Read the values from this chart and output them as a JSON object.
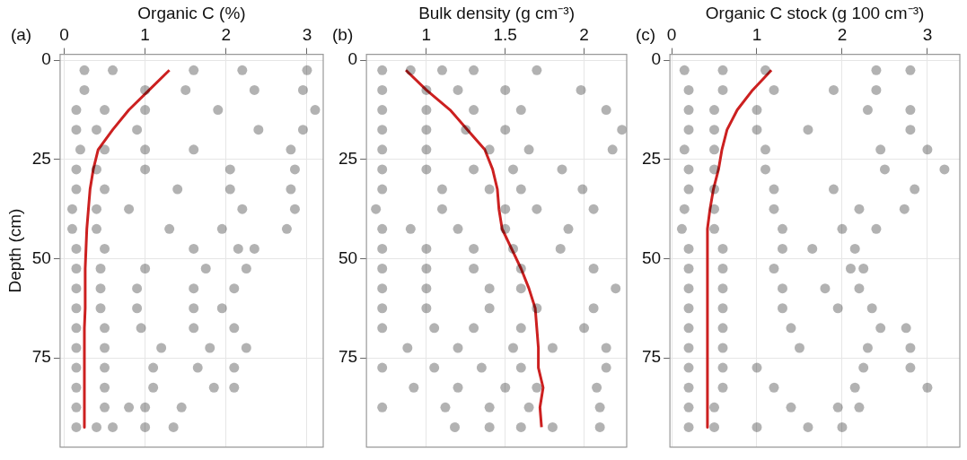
{
  "chart_data": [
    {
      "type": "scatter",
      "title": "(a)",
      "xlabel": "Organic C (%)",
      "ylabel": "Depth (cm)",
      "xlim": [
        -0.05,
        3.2
      ],
      "xticks": [
        0,
        1,
        2,
        3
      ],
      "ylim": [
        97.5,
        -1.5
      ],
      "yticks": [
        0,
        25,
        50,
        75
      ],
      "grid": true,
      "series": [
        {
          "marker": "circle",
          "color": "#000000",
          "x": [
            0.25,
            0.6,
            1.6,
            2.2,
            3.0,
            0.25,
            1.0,
            1.5,
            2.35,
            2.95,
            0.15,
            0.5,
            1.0,
            1.9,
            3.1,
            0.15,
            0.4,
            0.9,
            2.4,
            2.95,
            0.2,
            0.5,
            1.0,
            1.6,
            2.8,
            0.15,
            0.4,
            1.0,
            2.05,
            2.85,
            0.15,
            0.5,
            1.4,
            2.05,
            2.8,
            0.1,
            0.4,
            0.8,
            2.2,
            2.85,
            0.1,
            0.4,
            1.3,
            1.95,
            2.75,
            0.15,
            0.5,
            1.6,
            2.15,
            2.35,
            0.15,
            0.45,
            1.0,
            1.75,
            2.25,
            0.15,
            0.45,
            0.9,
            1.6,
            2.1,
            0.15,
            0.45,
            0.9,
            1.6,
            1.95,
            0.15,
            0.5,
            0.95,
            1.6,
            2.1,
            0.15,
            0.5,
            1.2,
            1.8,
            2.25,
            0.15,
            0.5,
            1.1,
            1.65,
            2.1,
            0.15,
            0.5,
            1.1,
            1.85,
            2.1,
            0.15,
            0.5,
            0.8,
            1.0,
            1.45,
            0.15,
            0.4,
            0.6,
            1.0,
            1.35
          ],
          "values": [
            2.5,
            2.5,
            2.5,
            2.5,
            2.5,
            7.5,
            7.5,
            7.5,
            7.5,
            7.5,
            12.5,
            12.5,
            12.5,
            12.5,
            12.5,
            17.5,
            17.5,
            17.5,
            17.5,
            17.5,
            22.5,
            22.5,
            22.5,
            22.5,
            22.5,
            27.5,
            27.5,
            27.5,
            27.5,
            27.5,
            32.5,
            32.5,
            32.5,
            32.5,
            32.5,
            37.5,
            37.5,
            37.5,
            37.5,
            37.5,
            42.5,
            42.5,
            42.5,
            42.5,
            42.5,
            47.5,
            47.5,
            47.5,
            47.5,
            47.5,
            52.5,
            52.5,
            52.5,
            52.5,
            52.5,
            57.5,
            57.5,
            57.5,
            57.5,
            57.5,
            62.5,
            62.5,
            62.5,
            62.5,
            62.5,
            67.5,
            67.5,
            67.5,
            67.5,
            67.5,
            72.5,
            72.5,
            72.5,
            72.5,
            72.5,
            77.5,
            77.5,
            77.5,
            77.5,
            77.5,
            82.5,
            82.5,
            82.5,
            82.5,
            82.5,
            87.5,
            87.5,
            87.5,
            87.5,
            87.5,
            92.5,
            92.5,
            92.5,
            92.5,
            92.5
          ]
        },
        {
          "type": "line",
          "color": "#cc2020",
          "x": [
            1.3,
            1.05,
            0.8,
            0.6,
            0.42,
            0.36,
            0.32,
            0.3,
            0.28,
            0.27,
            0.26,
            0.26,
            0.26,
            0.25,
            0.25,
            0.25,
            0.25,
            0.25,
            0.25
          ],
          "values": [
            2.5,
            7.5,
            12.5,
            17.5,
            22.5,
            27.5,
            32.5,
            37.5,
            42.5,
            47.5,
            52.5,
            57.5,
            62.5,
            67.5,
            72.5,
            77.5,
            82.5,
            87.5,
            92.5
          ]
        }
      ]
    },
    {
      "type": "scatter",
      "title": "(b)",
      "xlabel": "Bulk density (g cm⁻³)",
      "xlim": [
        0.62,
        2.27
      ],
      "xticks": [
        1,
        1.5,
        2
      ],
      "ylim": [
        97.5,
        -1.5
      ],
      "yticks": [
        0,
        25,
        50,
        75
      ],
      "grid": true,
      "series": [
        {
          "marker": "circle",
          "color": "#000000",
          "x": [
            0.72,
            0.9,
            1.1,
            1.3,
            1.7,
            0.72,
            1.0,
            1.2,
            1.5,
            1.98,
            0.72,
            1.0,
            1.3,
            1.6,
            2.14,
            0.72,
            1.0,
            1.25,
            1.5,
            2.24,
            0.72,
            1.0,
            1.4,
            1.65,
            2.18,
            0.72,
            1.0,
            1.3,
            1.55,
            1.86,
            0.72,
            1.1,
            1.4,
            1.6,
            1.99,
            0.68,
            1.1,
            1.5,
            1.7,
            2.06,
            0.72,
            0.9,
            1.2,
            1.5,
            1.9,
            0.72,
            1.0,
            1.3,
            1.55,
            1.85,
            0.72,
            1.0,
            1.3,
            1.6,
            2.06,
            0.72,
            1.0,
            1.4,
            1.6,
            2.2,
            0.72,
            1.0,
            1.4,
            1.7,
            2.06,
            0.72,
            1.05,
            1.3,
            1.6,
            2.0,
            0.88,
            1.2,
            1.55,
            1.8,
            2.14,
            0.72,
            1.05,
            1.35,
            1.6,
            2.14,
            0.92,
            1.2,
            1.5,
            1.7,
            2.08,
            0.72,
            1.12,
            1.4,
            1.65,
            2.1,
            1.18,
            1.4,
            1.6,
            1.8,
            2.1
          ],
          "values": [
            2.5,
            2.5,
            2.5,
            2.5,
            2.5,
            7.5,
            7.5,
            7.5,
            7.5,
            7.5,
            12.5,
            12.5,
            12.5,
            12.5,
            12.5,
            17.5,
            17.5,
            17.5,
            17.5,
            17.5,
            22.5,
            22.5,
            22.5,
            22.5,
            22.5,
            27.5,
            27.5,
            27.5,
            27.5,
            27.5,
            32.5,
            32.5,
            32.5,
            32.5,
            32.5,
            37.5,
            37.5,
            37.5,
            37.5,
            37.5,
            42.5,
            42.5,
            42.5,
            42.5,
            42.5,
            47.5,
            47.5,
            47.5,
            47.5,
            47.5,
            52.5,
            52.5,
            52.5,
            52.5,
            52.5,
            57.5,
            57.5,
            57.5,
            57.5,
            57.5,
            62.5,
            62.5,
            62.5,
            62.5,
            62.5,
            67.5,
            67.5,
            67.5,
            67.5,
            67.5,
            72.5,
            72.5,
            72.5,
            72.5,
            72.5,
            77.5,
            77.5,
            77.5,
            77.5,
            77.5,
            82.5,
            82.5,
            82.5,
            82.5,
            82.5,
            87.5,
            87.5,
            87.5,
            87.5,
            87.5,
            92.5,
            92.5,
            92.5,
            92.5,
            92.5
          ]
        },
        {
          "type": "line",
          "color": "#cc2020",
          "x": [
            0.87,
            1.0,
            1.15,
            1.26,
            1.37,
            1.42,
            1.45,
            1.46,
            1.48,
            1.54,
            1.6,
            1.65,
            1.69,
            1.7,
            1.71,
            1.71,
            1.74,
            1.72,
            1.73
          ],
          "values": [
            2.5,
            7.5,
            12.5,
            17.5,
            22.5,
            27.5,
            32.5,
            37.5,
            42.5,
            47.5,
            52.5,
            57.5,
            62.5,
            67.5,
            72.5,
            77.5,
            82.5,
            87.5,
            92.5
          ]
        }
      ]
    },
    {
      "type": "scatter",
      "title": "(c)",
      "xlabel": "Organic C stock (g 100 cm⁻³)",
      "xlim": [
        -0.02,
        3.38
      ],
      "xticks": [
        0,
        1,
        2,
        3
      ],
      "ylim": [
        97.5,
        -1.5
      ],
      "yticks": [
        0,
        25,
        50,
        75
      ],
      "grid": true,
      "series": [
        {
          "marker": "circle",
          "color": "#000000",
          "x": [
            0.15,
            0.6,
            1.1,
            2.4,
            2.8,
            0.2,
            0.6,
            1.2,
            1.9,
            2.4,
            0.2,
            0.5,
            1.0,
            2.3,
            2.8,
            0.2,
            0.5,
            1.0,
            1.6,
            2.8,
            0.15,
            0.5,
            1.1,
            2.45,
            3.0,
            0.2,
            0.5,
            1.1,
            2.5,
            3.2,
            0.2,
            0.5,
            1.2,
            1.9,
            2.85,
            0.15,
            0.5,
            1.2,
            2.2,
            2.73,
            0.12,
            0.5,
            1.3,
            2.0,
            2.4,
            0.2,
            0.6,
            1.3,
            1.65,
            2.15,
            0.2,
            0.6,
            1.2,
            2.1,
            2.25,
            0.2,
            0.6,
            1.3,
            1.8,
            2.2,
            0.2,
            0.6,
            1.3,
            1.95,
            2.35,
            0.2,
            0.6,
            1.4,
            2.45,
            2.75,
            0.2,
            0.6,
            1.5,
            2.3,
            2.8,
            0.2,
            0.6,
            1.0,
            2.25,
            2.8,
            0.2,
            0.6,
            1.2,
            2.15,
            3.0,
            0.2,
            0.5,
            1.4,
            1.95,
            2.2,
            0.2,
            0.5,
            1.0,
            1.6,
            2.0
          ],
          "values": [
            2.5,
            2.5,
            2.5,
            2.5,
            2.5,
            7.5,
            7.5,
            7.5,
            7.5,
            7.5,
            12.5,
            12.5,
            12.5,
            12.5,
            12.5,
            17.5,
            17.5,
            17.5,
            17.5,
            17.5,
            22.5,
            22.5,
            22.5,
            22.5,
            22.5,
            27.5,
            27.5,
            27.5,
            27.5,
            27.5,
            32.5,
            32.5,
            32.5,
            32.5,
            32.5,
            37.5,
            37.5,
            37.5,
            37.5,
            37.5,
            42.5,
            42.5,
            42.5,
            42.5,
            42.5,
            47.5,
            47.5,
            47.5,
            47.5,
            47.5,
            52.5,
            52.5,
            52.5,
            52.5,
            52.5,
            57.5,
            57.5,
            57.5,
            57.5,
            57.5,
            62.5,
            62.5,
            62.5,
            62.5,
            62.5,
            67.5,
            67.5,
            67.5,
            67.5,
            67.5,
            72.5,
            72.5,
            72.5,
            72.5,
            72.5,
            77.5,
            77.5,
            77.5,
            77.5,
            77.5,
            82.5,
            82.5,
            82.5,
            82.5,
            82.5,
            87.5,
            87.5,
            87.5,
            87.5,
            87.5,
            92.5,
            92.5,
            92.5,
            92.5,
            92.5
          ]
        },
        {
          "type": "line",
          "color": "#cc2020",
          "x": [
            1.17,
            0.95,
            0.77,
            0.65,
            0.59,
            0.55,
            0.49,
            0.45,
            0.42,
            0.42,
            0.42,
            0.42,
            0.42,
            0.42,
            0.42,
            0.42,
            0.42,
            0.42,
            0.42
          ],
          "values": [
            2.5,
            7.5,
            12.5,
            17.5,
            22.5,
            27.5,
            32.5,
            37.5,
            42.5,
            47.5,
            52.5,
            57.5,
            62.5,
            67.5,
            72.5,
            77.5,
            82.5,
            87.5,
            92.5
          ]
        }
      ]
    }
  ]
}
